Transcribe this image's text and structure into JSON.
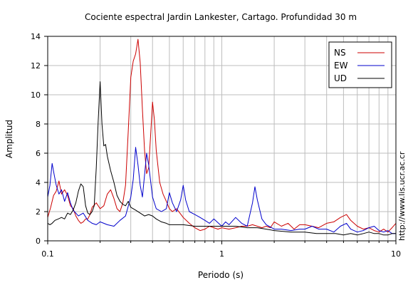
{
  "chart_data": {
    "type": "line",
    "title": "Cociente espectral Jardin Lankester, Cartago. Profundidad 30 m",
    "xlabel": "Periodo (s)",
    "ylabel": "Amplitud",
    "xscale": "log",
    "xlim": [
      0.1,
      10
    ],
    "ylim": [
      0,
      14
    ],
    "grid": true,
    "legend_position": "top-right",
    "watermark": "http://www.lis.ucr.ac.cr",
    "x_ticks": [
      {
        "value": 0.1,
        "label": "0.1"
      },
      {
        "value": 1,
        "label": "1"
      },
      {
        "value": 10,
        "label": "10"
      }
    ],
    "y_ticks": [
      {
        "value": 0,
        "label": "0"
      },
      {
        "value": 2,
        "label": "2"
      },
      {
        "value": 4,
        "label": "4"
      },
      {
        "value": 6,
        "label": "6"
      },
      {
        "value": 8,
        "label": "8"
      },
      {
        "value": 10,
        "label": "10"
      },
      {
        "value": 12,
        "label": "12"
      },
      {
        "value": 14,
        "label": "14"
      }
    ],
    "series": [
      {
        "name": "NS",
        "color": "#cc0000",
        "points": [
          [
            0.1,
            1.6
          ],
          [
            0.104,
            2.3
          ],
          [
            0.108,
            3.1
          ],
          [
            0.112,
            3.4
          ],
          [
            0.116,
            4.1
          ],
          [
            0.12,
            3.2
          ],
          [
            0.125,
            3.5
          ],
          [
            0.13,
            3.1
          ],
          [
            0.135,
            2.4
          ],
          [
            0.14,
            2.2
          ],
          [
            0.145,
            1.7
          ],
          [
            0.15,
            1.4
          ],
          [
            0.155,
            1.2
          ],
          [
            0.16,
            1.3
          ],
          [
            0.165,
            1.5
          ],
          [
            0.17,
            1.5
          ],
          [
            0.175,
            1.8
          ],
          [
            0.18,
            2.3
          ],
          [
            0.19,
            2.6
          ],
          [
            0.2,
            2.2
          ],
          [
            0.21,
            2.4
          ],
          [
            0.22,
            3.2
          ],
          [
            0.23,
            3.5
          ],
          [
            0.24,
            2.9
          ],
          [
            0.25,
            2.2
          ],
          [
            0.26,
            2.0
          ],
          [
            0.27,
            2.6
          ],
          [
            0.28,
            3.8
          ],
          [
            0.29,
            7.5
          ],
          [
            0.3,
            11.2
          ],
          [
            0.31,
            12.3
          ],
          [
            0.32,
            12.8
          ],
          [
            0.33,
            13.8
          ],
          [
            0.34,
            12.2
          ],
          [
            0.35,
            9.0
          ],
          [
            0.36,
            6.2
          ],
          [
            0.37,
            4.6
          ],
          [
            0.38,
            5.0
          ],
          [
            0.39,
            7.2
          ],
          [
            0.4,
            9.5
          ],
          [
            0.41,
            8.3
          ],
          [
            0.42,
            6.2
          ],
          [
            0.44,
            4.0
          ],
          [
            0.46,
            3.2
          ],
          [
            0.48,
            2.7
          ],
          [
            0.5,
            2.2
          ],
          [
            0.52,
            2.0
          ],
          [
            0.55,
            2.2
          ],
          [
            0.6,
            1.6
          ],
          [
            0.65,
            1.2
          ],
          [
            0.7,
            0.9
          ],
          [
            0.75,
            0.7
          ],
          [
            0.8,
            0.8
          ],
          [
            0.85,
            1.0
          ],
          [
            0.9,
            0.9
          ],
          [
            0.95,
            0.8
          ],
          [
            1.0,
            0.9
          ],
          [
            1.1,
            0.8
          ],
          [
            1.2,
            0.9
          ],
          [
            1.3,
            1.0
          ],
          [
            1.4,
            1.0
          ],
          [
            1.5,
            1.1
          ],
          [
            1.6,
            1.0
          ],
          [
            1.7,
            0.9
          ],
          [
            1.8,
            1.0
          ],
          [
            1.9,
            0.9
          ],
          [
            2.0,
            1.3
          ],
          [
            2.2,
            1.0
          ],
          [
            2.4,
            1.2
          ],
          [
            2.6,
            0.8
          ],
          [
            2.8,
            1.1
          ],
          [
            3.0,
            1.1
          ],
          [
            3.3,
            1.0
          ],
          [
            3.6,
            0.9
          ],
          [
            4.0,
            1.2
          ],
          [
            4.4,
            1.3
          ],
          [
            4.8,
            1.6
          ],
          [
            5.2,
            1.8
          ],
          [
            5.5,
            1.4
          ],
          [
            6.0,
            1.0
          ],
          [
            6.5,
            0.8
          ],
          [
            7.0,
            0.9
          ],
          [
            7.5,
            0.7
          ],
          [
            8.0,
            0.6
          ],
          [
            8.5,
            0.8
          ],
          [
            9.0,
            0.6
          ],
          [
            9.5,
            0.9
          ],
          [
            10.0,
            1.2
          ]
        ]
      },
      {
        "name": "EW",
        "color": "#0000cc",
        "points": [
          [
            0.1,
            3.0
          ],
          [
            0.103,
            3.8
          ],
          [
            0.106,
            5.3
          ],
          [
            0.109,
            4.5
          ],
          [
            0.112,
            3.8
          ],
          [
            0.116,
            3.2
          ],
          [
            0.12,
            3.5
          ],
          [
            0.125,
            2.7
          ],
          [
            0.13,
            3.3
          ],
          [
            0.135,
            2.6
          ],
          [
            0.14,
            2.1
          ],
          [
            0.15,
            1.7
          ],
          [
            0.16,
            1.9
          ],
          [
            0.17,
            1.4
          ],
          [
            0.18,
            1.2
          ],
          [
            0.19,
            1.1
          ],
          [
            0.2,
            1.3
          ],
          [
            0.21,
            1.2
          ],
          [
            0.22,
            1.1
          ],
          [
            0.24,
            1.0
          ],
          [
            0.26,
            1.4
          ],
          [
            0.28,
            1.7
          ],
          [
            0.3,
            3.0
          ],
          [
            0.31,
            4.2
          ],
          [
            0.32,
            6.4
          ],
          [
            0.33,
            5.2
          ],
          [
            0.34,
            3.8
          ],
          [
            0.35,
            3.0
          ],
          [
            0.36,
            4.5
          ],
          [
            0.37,
            6.0
          ],
          [
            0.38,
            5.2
          ],
          [
            0.4,
            3.0
          ],
          [
            0.42,
            2.2
          ],
          [
            0.45,
            2.0
          ],
          [
            0.48,
            2.2
          ],
          [
            0.5,
            3.3
          ],
          [
            0.52,
            2.6
          ],
          [
            0.55,
            2.0
          ],
          [
            0.58,
            2.8
          ],
          [
            0.6,
            3.8
          ],
          [
            0.62,
            2.8
          ],
          [
            0.65,
            2.0
          ],
          [
            0.7,
            1.8
          ],
          [
            0.75,
            1.6
          ],
          [
            0.8,
            1.4
          ],
          [
            0.85,
            1.2
          ],
          [
            0.9,
            1.5
          ],
          [
            1.0,
            1.0
          ],
          [
            1.05,
            1.3
          ],
          [
            1.1,
            1.1
          ],
          [
            1.2,
            1.6
          ],
          [
            1.3,
            1.2
          ],
          [
            1.4,
            1.0
          ],
          [
            1.5,
            2.6
          ],
          [
            1.55,
            3.7
          ],
          [
            1.6,
            2.8
          ],
          [
            1.7,
            1.5
          ],
          [
            1.8,
            1.1
          ],
          [
            2.0,
            0.8
          ],
          [
            2.2,
            0.8
          ],
          [
            2.5,
            0.7
          ],
          [
            2.8,
            0.8
          ],
          [
            3.0,
            0.8
          ],
          [
            3.3,
            1.0
          ],
          [
            3.6,
            0.8
          ],
          [
            4.0,
            0.8
          ],
          [
            4.4,
            0.6
          ],
          [
            4.8,
            1.0
          ],
          [
            5.2,
            1.2
          ],
          [
            5.5,
            0.8
          ],
          [
            6.0,
            0.6
          ],
          [
            6.5,
            0.7
          ],
          [
            7.0,
            0.9
          ],
          [
            7.5,
            1.0
          ],
          [
            8.0,
            0.7
          ],
          [
            8.5,
            0.6
          ],
          [
            9.0,
            0.7
          ],
          [
            9.5,
            0.5
          ],
          [
            10.0,
            0.5
          ]
        ]
      },
      {
        "name": "UD",
        "color": "#000000",
        "points": [
          [
            0.1,
            1.2
          ],
          [
            0.103,
            1.1
          ],
          [
            0.106,
            1.2
          ],
          [
            0.11,
            1.4
          ],
          [
            0.115,
            1.5
          ],
          [
            0.12,
            1.6
          ],
          [
            0.125,
            1.5
          ],
          [
            0.13,
            1.9
          ],
          [
            0.135,
            1.8
          ],
          [
            0.14,
            2.1
          ],
          [
            0.145,
            2.6
          ],
          [
            0.15,
            3.4
          ],
          [
            0.155,
            3.9
          ],
          [
            0.16,
            3.7
          ],
          [
            0.165,
            2.4
          ],
          [
            0.17,
            1.9
          ],
          [
            0.175,
            1.8
          ],
          [
            0.18,
            2.0
          ],
          [
            0.185,
            2.4
          ],
          [
            0.19,
            5.0
          ],
          [
            0.195,
            8.2
          ],
          [
            0.2,
            10.9
          ],
          [
            0.205,
            8.0
          ],
          [
            0.21,
            6.5
          ],
          [
            0.215,
            6.6
          ],
          [
            0.22,
            5.8
          ],
          [
            0.23,
            4.8
          ],
          [
            0.24,
            4.0
          ],
          [
            0.25,
            3.1
          ],
          [
            0.26,
            2.7
          ],
          [
            0.27,
            2.5
          ],
          [
            0.28,
            2.4
          ],
          [
            0.29,
            2.7
          ],
          [
            0.3,
            2.3
          ],
          [
            0.32,
            2.1
          ],
          [
            0.34,
            1.9
          ],
          [
            0.36,
            1.7
          ],
          [
            0.38,
            1.8
          ],
          [
            0.4,
            1.7
          ],
          [
            0.42,
            1.5
          ],
          [
            0.45,
            1.3
          ],
          [
            0.48,
            1.2
          ],
          [
            0.5,
            1.1
          ],
          [
            0.55,
            1.1
          ],
          [
            0.6,
            1.1
          ],
          [
            0.7,
            1.0
          ],
          [
            0.8,
            1.0
          ],
          [
            0.9,
            1.0
          ],
          [
            1.0,
            1.0
          ],
          [
            1.2,
            1.0
          ],
          [
            1.4,
            0.9
          ],
          [
            1.6,
            0.9
          ],
          [
            1.8,
            0.8
          ],
          [
            2.0,
            0.7
          ],
          [
            2.5,
            0.6
          ],
          [
            3.0,
            0.6
          ],
          [
            3.5,
            0.5
          ],
          [
            4.0,
            0.5
          ],
          [
            4.5,
            0.5
          ],
          [
            5.0,
            0.4
          ],
          [
            5.5,
            0.5
          ],
          [
            6.0,
            0.4
          ],
          [
            6.5,
            0.5
          ],
          [
            7.0,
            0.6
          ],
          [
            7.5,
            0.5
          ],
          [
            8.0,
            0.5
          ],
          [
            8.5,
            0.4
          ],
          [
            9.0,
            0.4
          ],
          [
            9.5,
            0.5
          ],
          [
            10.0,
            0.5
          ]
        ]
      }
    ]
  }
}
